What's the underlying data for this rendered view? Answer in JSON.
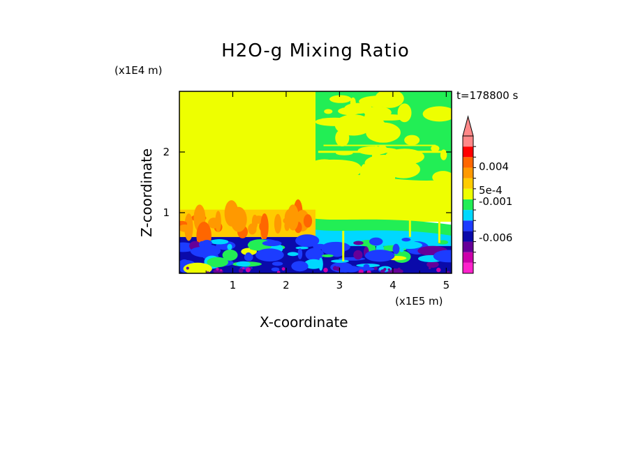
{
  "chart_data": {
    "type": "heatmap",
    "title": "H2O-g Mixing Ratio",
    "xlabel": "X-coordinate",
    "ylabel": "Z-coordinate",
    "x_unit": "(x1E5 m)",
    "y_unit": "(x1E4 m)",
    "time_label": "t=178800 s",
    "xlim": [
      0,
      5.1
    ],
    "ylim": [
      0,
      3.0
    ],
    "x_ticks": [
      1,
      2,
      3,
      4,
      5
    ],
    "y_ticks": [
      1,
      2
    ],
    "colorbar": {
      "extend": "max",
      "levels_colors": [
        "#ff22cc",
        "#cc00aa",
        "#660099",
        "#0a0aaa",
        "#1c3cff",
        "#00d8ff",
        "#22ee55",
        "#eeff00",
        "#ffcc00",
        "#ff9900",
        "#ff6600",
        "#ff0000",
        "#ff8888"
      ],
      "labels": [
        "0.004",
        "5e-4",
        "-0.001",
        "-0.006"
      ]
    },
    "regions": [
      {
        "name": "upper-left",
        "x": [
          0,
          2.55
        ],
        "z": [
          0.6,
          3.0
        ],
        "dominant_color": "#eeff00"
      },
      {
        "name": "upper-right",
        "x": [
          2.55,
          5.1
        ],
        "z": [
          0.9,
          3.0
        ],
        "dominant_color": "#22ee55"
      },
      {
        "name": "lower-band",
        "x": [
          0,
          5.1
        ],
        "z": [
          0,
          0.6
        ],
        "dominant_color": "#0a0aaa"
      },
      {
        "name": "boundary-layer-left",
        "x": [
          0,
          2.55
        ],
        "z": [
          0.6,
          1.05
        ],
        "dominant_color": "#ffcc00"
      }
    ]
  }
}
